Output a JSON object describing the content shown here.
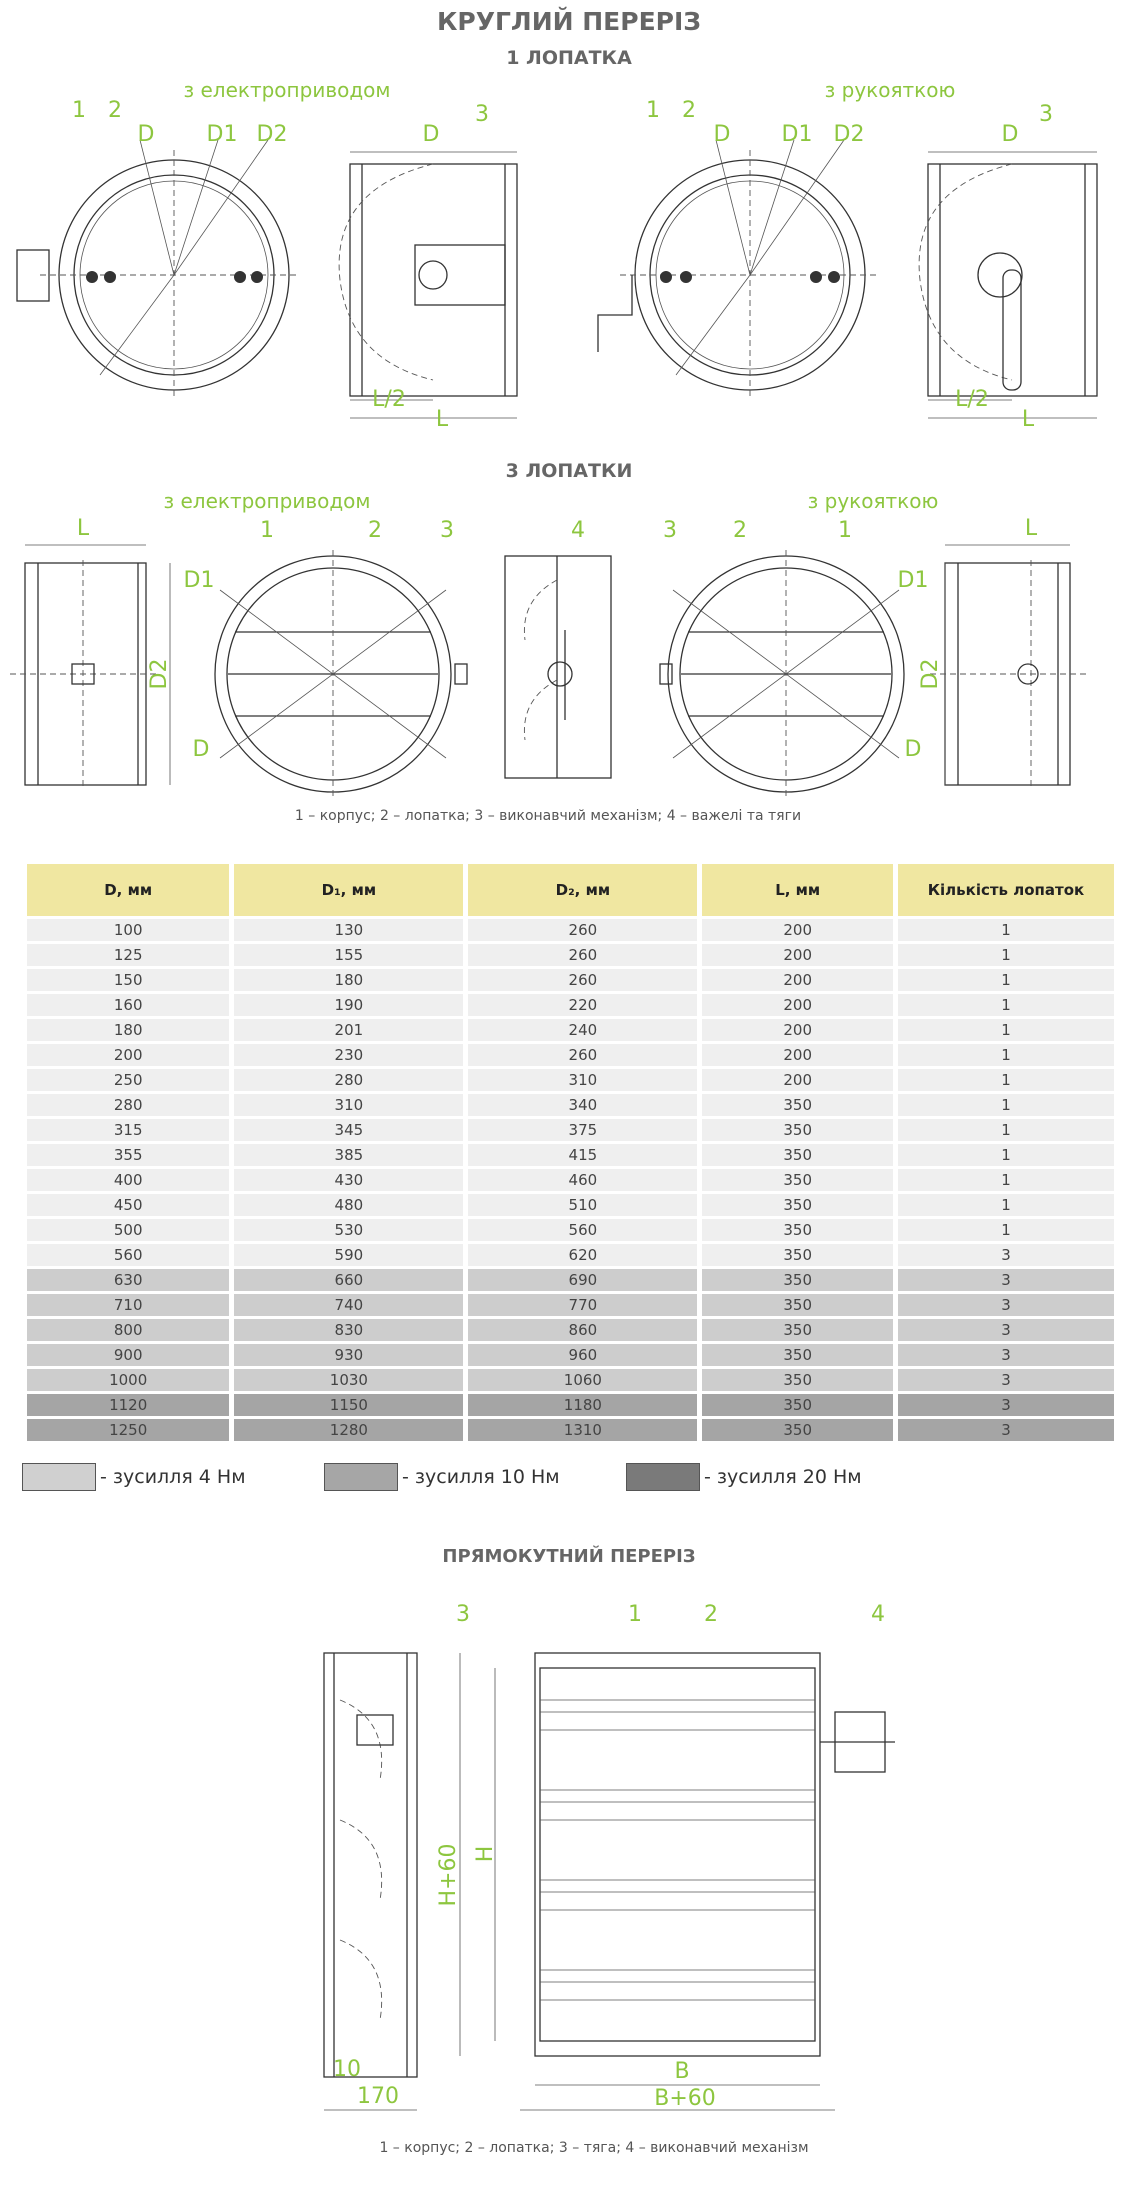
{
  "header": {
    "title": "КРУГЛИЙ ПЕРЕРІЗ",
    "subtitle": "1 ЛОПАТКА",
    "label_left": "з електроприводом",
    "label_right": "з рукояткою"
  },
  "drawing_1a": {
    "labels": [
      "1",
      "2",
      "D",
      "D1",
      "D2"
    ]
  },
  "drawing_1b": {
    "labels": [
      "D",
      "3",
      "L/2",
      "L"
    ]
  },
  "drawing_1c": {
    "labels": [
      "1",
      "2",
      "D",
      "D1",
      "D2"
    ]
  },
  "drawing_1d": {
    "labels": [
      "D",
      "3",
      "L/2",
      "L"
    ]
  },
  "section_2": {
    "title": "3 ЛОПАТКИ",
    "label_left": "з електроприводом",
    "label_right": "з рукояткою",
    "caption": "1 – корпус; 2 – лопатка; 3 –  виконавчий механізм; 4 –  важелі та тяги"
  },
  "drawing_2a": {
    "labels": [
      "L",
      "D2"
    ]
  },
  "drawing_2b": {
    "labels": [
      "1",
      "2",
      "3",
      "D1",
      "D"
    ]
  },
  "drawing_2c": {
    "labels": [
      "4"
    ]
  },
  "drawing_2d": {
    "labels": [
      "3",
      "2",
      "1",
      "D1",
      "D"
    ]
  },
  "drawing_2e": {
    "labels": [
      "L",
      "D2"
    ]
  },
  "table": {
    "header": [
      "D, мм",
      "D₁, мм",
      "D₂, мм",
      "L, мм",
      "Кількість лопаток"
    ],
    "rows": [
      [
        "100",
        "130",
        "260",
        "200",
        "1"
      ],
      [
        "125",
        "155",
        "260",
        "200",
        "1"
      ],
      [
        "150",
        "180",
        "260",
        "200",
        "1"
      ],
      [
        "160",
        "190",
        "220",
        "200",
        "1"
      ],
      [
        "180",
        "201",
        "240",
        "200",
        "1"
      ],
      [
        "200",
        "230",
        "260",
        "200",
        "1"
      ],
      [
        "250",
        "280",
        "310",
        "200",
        "1"
      ],
      [
        "280",
        "310",
        "340",
        "350",
        "1"
      ],
      [
        "315",
        "345",
        "375",
        "350",
        "1"
      ],
      [
        "355",
        "385",
        "415",
        "350",
        "1"
      ],
      [
        "400",
        "430",
        "460",
        "350",
        "1"
      ],
      [
        "450",
        "480",
        "510",
        "350",
        "1"
      ],
      [
        "500",
        "530",
        "560",
        "350",
        "1"
      ],
      [
        "560",
        "590",
        "620",
        "350",
        "3"
      ],
      [
        "630",
        "660",
        "690",
        "350",
        "3"
      ],
      [
        "710",
        "740",
        "770",
        "350",
        "3"
      ],
      [
        "800",
        "830",
        "860",
        "350",
        "3"
      ],
      [
        "900",
        "930",
        "960",
        "350",
        "3"
      ],
      [
        "1000",
        "1030",
        "1060",
        "350",
        "3"
      ],
      [
        "1120",
        "1150",
        "1180",
        "350",
        "3"
      ],
      [
        "1250",
        "1280",
        "1310",
        "350",
        "3"
      ]
    ],
    "row_colors": [
      "#efefef",
      "#efefef",
      "#efefef",
      "#efefef",
      "#efefef",
      "#efefef",
      "#efefef",
      "#efefef",
      "#efefef",
      "#efefef",
      "#efefef",
      "#efefef",
      "#efefef",
      "#efefef",
      "#cdcdcd",
      "#cdcdcd",
      "#cdcdcd",
      "#cdcdcd",
      "#cdcdcd",
      "#a5a5a5",
      "#a5a5a5"
    ]
  },
  "legend": [
    {
      "label": "- зусилля 4 Нм",
      "color": "#d0d0d0"
    },
    {
      "label": "- зусилля 10 Нм",
      "color": "#a6a6a6"
    },
    {
      "label": "- зусилля 20 Нм",
      "color": "#7a7a7a"
    }
  ],
  "section_3": {
    "title": "ПРЯМОКУТНИЙ ПЕРЕРІЗ",
    "labels": [
      "3",
      "1",
      "2",
      "4",
      "H+60",
      "H",
      "10",
      "170",
      "B",
      "B+60"
    ],
    "caption": "1 – корпус; 2 – лопатка; 3 – тяга; 4 – виконавчий механізм"
  }
}
